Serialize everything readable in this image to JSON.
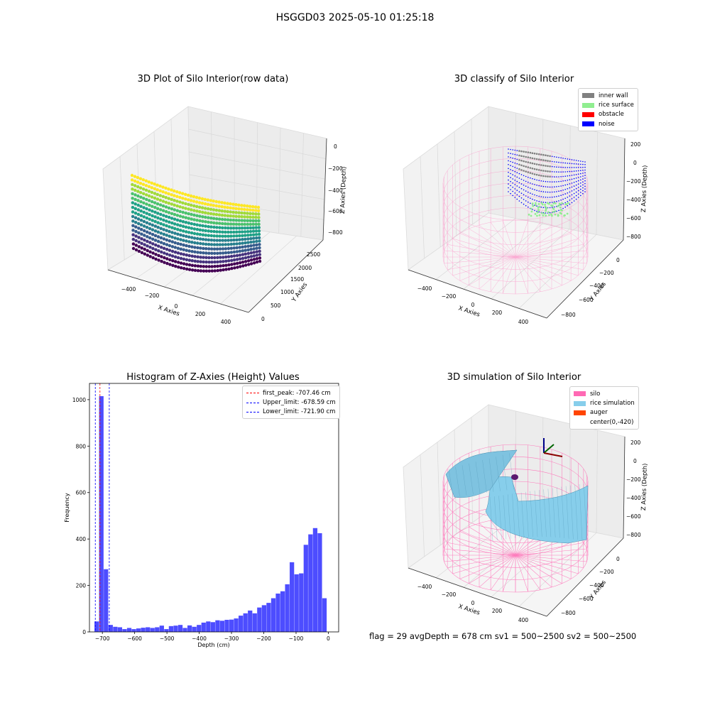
{
  "suptitle": "HSGGD03 2025-05-10 01:25:18",
  "colors": {
    "inner_wall": "#808080",
    "rice_surface": "#90ee90",
    "obstacle": "#ff0000",
    "noise": "#0000ff",
    "silo": "#ff69b4",
    "rice_simulation": "#87ceeb",
    "auger": "#ff4500",
    "hist_bar": "#4d4dff",
    "first_peak_line": "#ff0000",
    "limit_line": "#0000ff"
  },
  "panels": {
    "raw": {
      "title": "3D Plot of Silo Interior(row data)",
      "xlabel": "X Axies",
      "ylabel": "Y Axies",
      "zlabel": "Z Axies (Depth)",
      "xticks": [
        "−400",
        "−200",
        "0",
        "200",
        "400"
      ],
      "yticks": [
        "0",
        "500",
        "1000",
        "1500",
        "2000",
        "2500"
      ],
      "zticks": [
        "0",
        "−200",
        "−400",
        "−600",
        "−800"
      ]
    },
    "classify": {
      "title": "3D classify of Silo Interior",
      "xlabel": "X Axies",
      "ylabel": "Y Axies",
      "zlabel": "Z Axies (Depth)",
      "xticks": [
        "−400",
        "−200",
        "0",
        "200",
        "400"
      ],
      "yticks": [
        "0",
        "−200",
        "−400",
        "−600",
        "−800"
      ],
      "zticks": [
        "200",
        "0",
        "−200",
        "−400",
        "−600",
        "−800"
      ],
      "legend": [
        "inner wall",
        "rice surface",
        "obstacle",
        "noise"
      ]
    },
    "simulation": {
      "title": "3D simulation of Silo Interior",
      "xlabel": "X Axies",
      "ylabel": "Y Axies",
      "zlabel": "Z Axies (Depth)",
      "xticks": [
        "−400",
        "−200",
        "0",
        "200",
        "400"
      ],
      "yticks": [
        "0",
        "−200",
        "−400",
        "−600",
        "−800"
      ],
      "zticks": [
        "200",
        "0",
        "−200",
        "−400",
        "−600",
        "−800"
      ],
      "legend": [
        "silo",
        "rice simulation",
        "auger",
        "center(0,-420)"
      ]
    },
    "footer": "flag = 29  avgDepth = 678 cm  sv1 = 500~2500  sv2 = 500~2500"
  },
  "chart_data": {
    "type": "bar",
    "title": "Histogram of Z-Axies (Height) Values",
    "xlabel": "Depth (cm)",
    "ylabel": "Frequency",
    "xlim": [
      -740,
      32
    ],
    "ylim": [
      0,
      1070
    ],
    "xticks": [
      -700,
      -600,
      -500,
      -400,
      -300,
      -200,
      -100,
      0
    ],
    "yticks": [
      0,
      200,
      400,
      600,
      800,
      1000
    ],
    "bins": {
      "start": -724.5,
      "width": 14.4,
      "values": [
        45,
        1015,
        270,
        30,
        22,
        20,
        12,
        17,
        12,
        15,
        18,
        20,
        17,
        20,
        27,
        12,
        25,
        27,
        30,
        17,
        28,
        22,
        30,
        40,
        45,
        42,
        50,
        48,
        52,
        53,
        58,
        70,
        80,
        92,
        80,
        105,
        115,
        125,
        145,
        165,
        175,
        205,
        300,
        248,
        252,
        375,
        420,
        447,
        425,
        145
      ]
    },
    "lines": [
      {
        "name": "first_peak: -707.46 cm",
        "x": -707.46,
        "color": "#ff0000"
      },
      {
        "name": "Upper_limit: -678.59 cm",
        "x": -678.59,
        "color": "#0000ff"
      },
      {
        "name": "Lower_limit: -721.90 cm",
        "x": -721.9,
        "color": "#0000ff"
      }
    ]
  }
}
